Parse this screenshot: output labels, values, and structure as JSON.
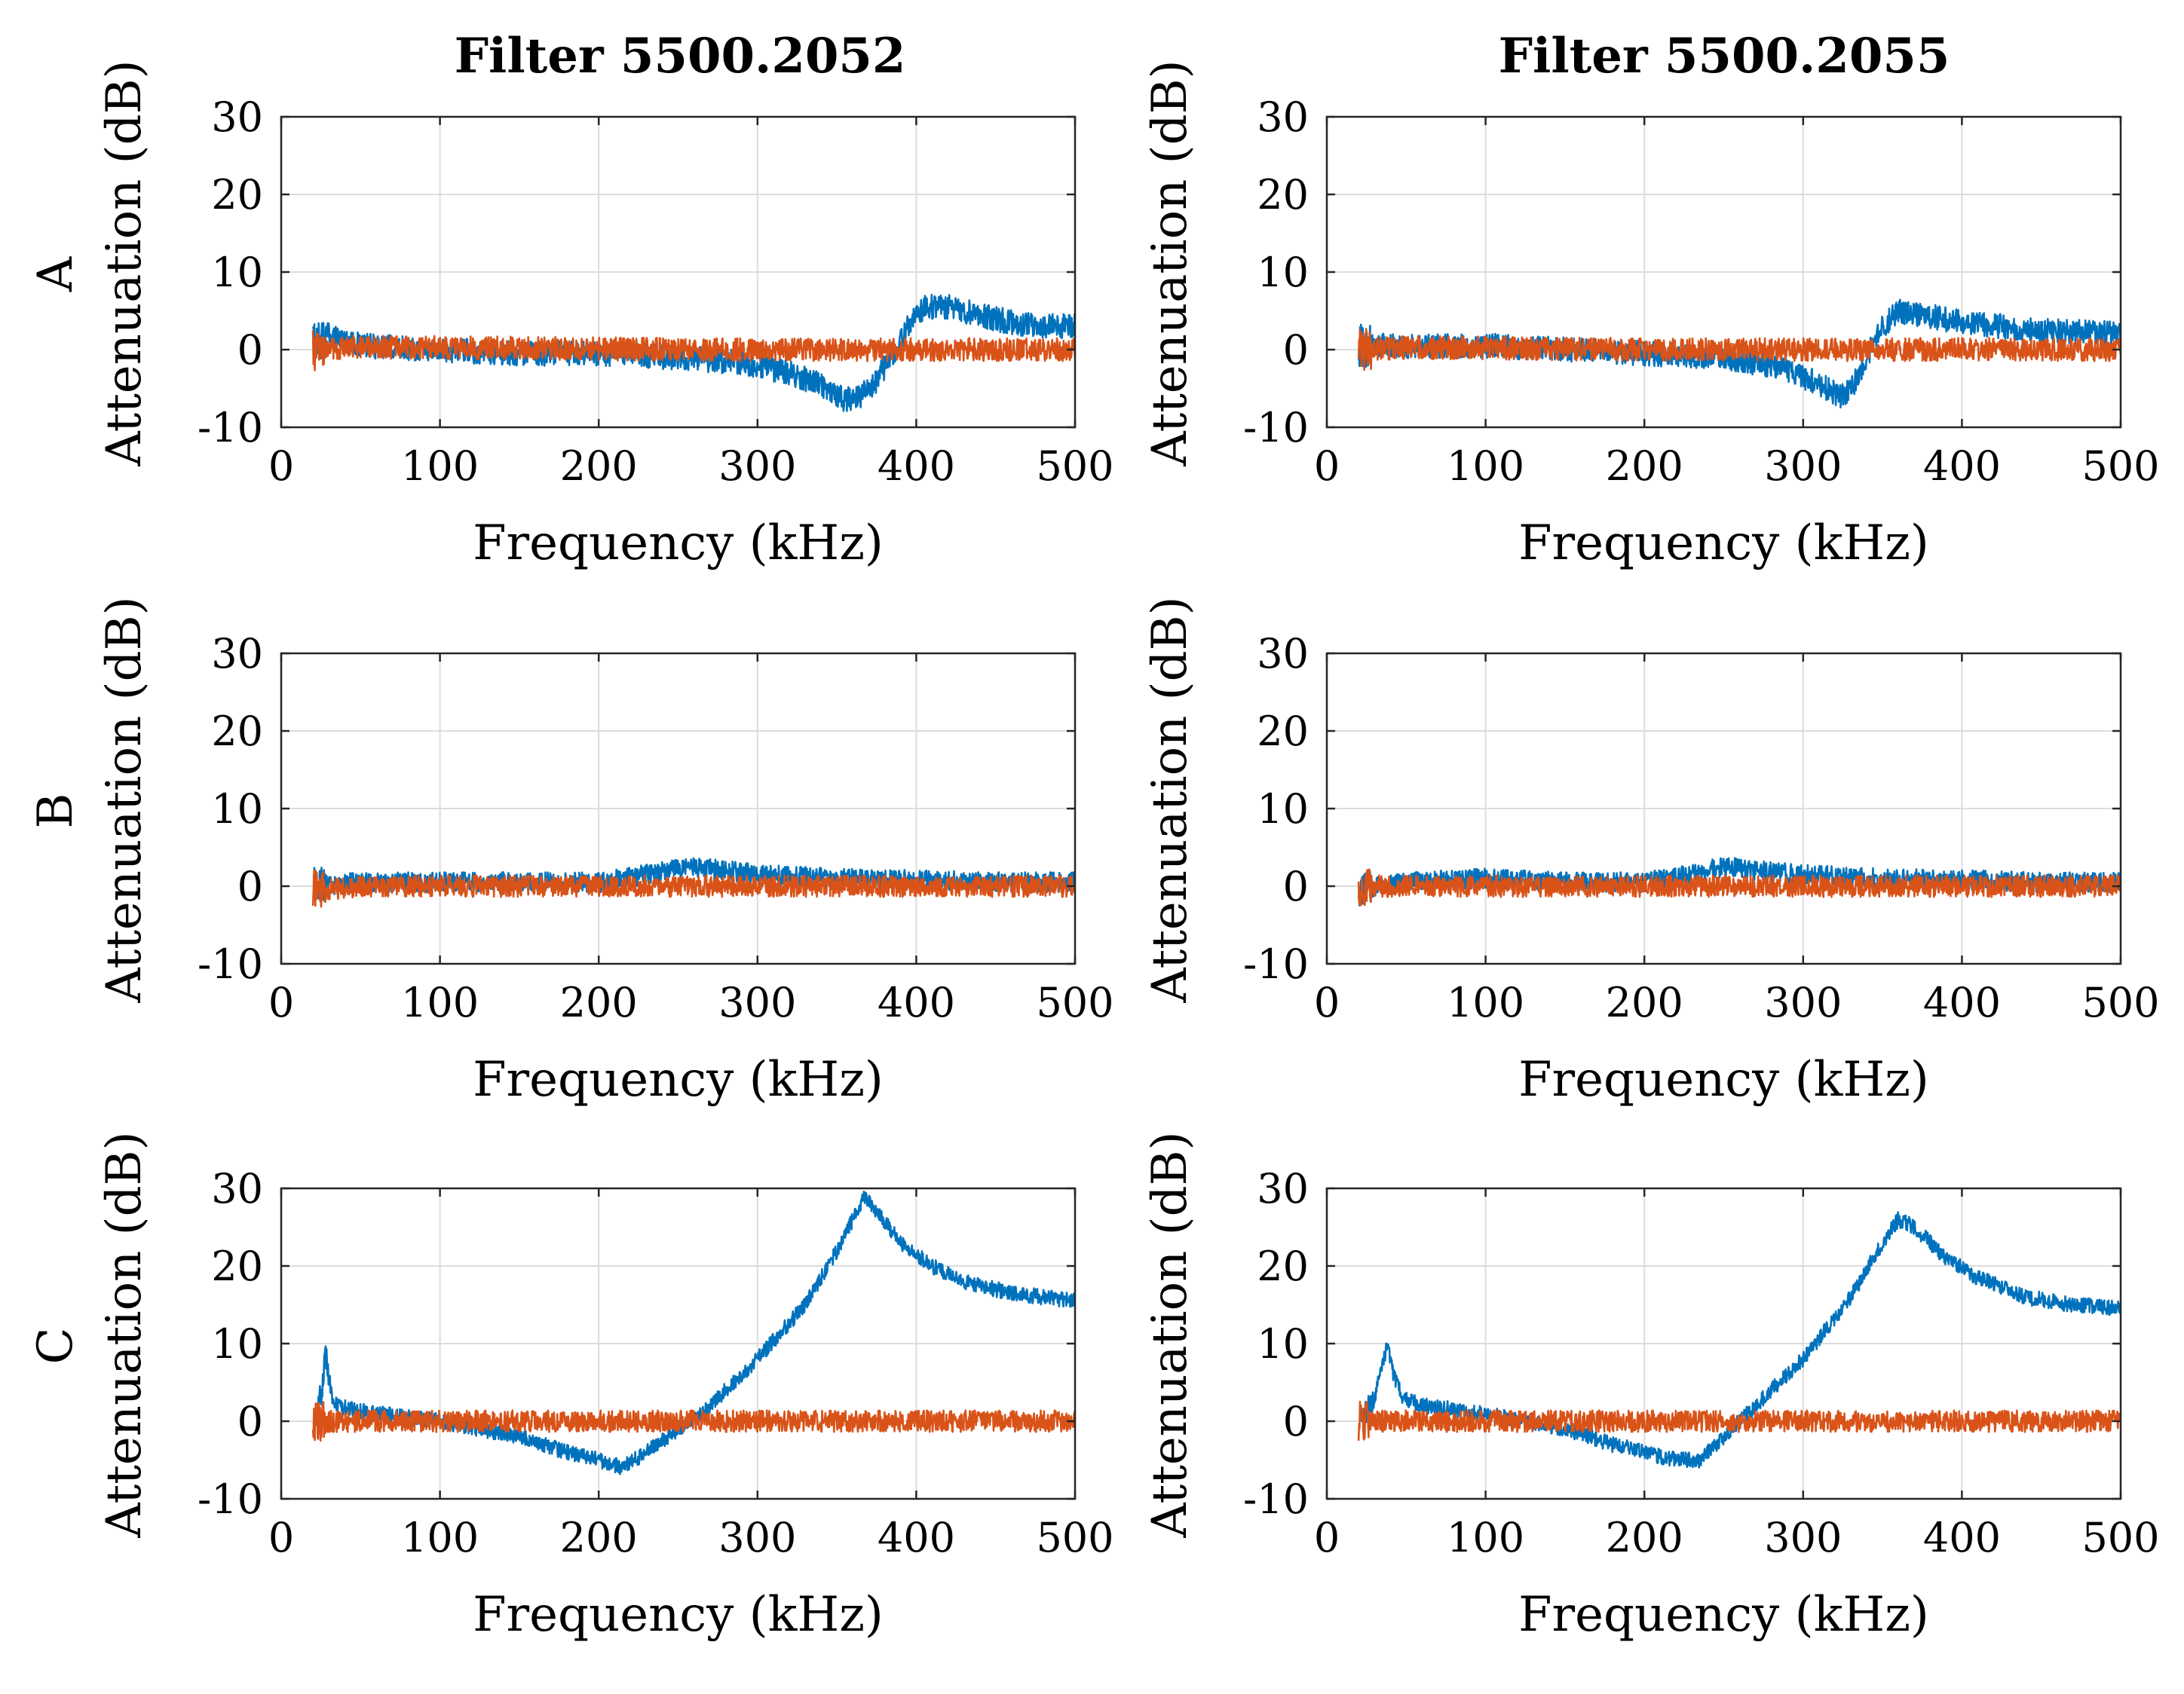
{
  "figure": {
    "column_titles": [
      "Filter 5500.2052",
      "Filter 5500.2055"
    ],
    "row_labels": [
      "A",
      "B",
      "C"
    ],
    "xlabel": "Frequency (kHz)",
    "ylabel": "Attenuation (dB)"
  },
  "colors": {
    "blue": "#0072BD",
    "orange": "#D95319",
    "grid": "#dcdcdc",
    "axis": "#262626"
  },
  "chart_data": [
    {
      "type": "line",
      "row_label": "A",
      "column_title": "Filter 5500.2052",
      "xlabel": "Frequency (kHz)",
      "ylabel": "Attenuation (dB)",
      "xlim": [
        0,
        500
      ],
      "ylim": [
        -10,
        30
      ],
      "xticks": [
        0,
        100,
        200,
        300,
        400,
        500
      ],
      "yticks": [
        -10,
        0,
        10,
        20,
        30
      ],
      "grid": true,
      "series": [
        {
          "color": "#0072BD",
          "noise": 1.6,
          "x": [
            20,
            30,
            50,
            100,
            150,
            200,
            250,
            280,
            300,
            320,
            340,
            355,
            365,
            375,
            385,
            395,
            405,
            420,
            440,
            460,
            480,
            500
          ],
          "y": [
            1,
            2,
            0.5,
            0,
            -0.5,
            -0.5,
            -1,
            -1.5,
            -2,
            -3,
            -4.5,
            -6.5,
            -6,
            -4,
            -0.5,
            3,
            5.5,
            5.5,
            4.5,
            3.5,
            3,
            3
          ]
        },
        {
          "color": "#D95319",
          "noise": 1.5,
          "x": [
            20,
            50,
            100,
            200,
            300,
            400,
            500
          ],
          "y": [
            0,
            0.3,
            0.3,
            0.1,
            0,
            0,
            0
          ]
        }
      ]
    },
    {
      "type": "line",
      "row_label": "A",
      "column_title": "Filter 5500.2055",
      "xlabel": "Frequency (kHz)",
      "ylabel": "Attenuation (dB)",
      "xlim": [
        0,
        500
      ],
      "ylim": [
        -10,
        30
      ],
      "xticks": [
        0,
        100,
        200,
        300,
        400,
        500
      ],
      "yticks": [
        -10,
        0,
        10,
        20,
        30
      ],
      "grid": true,
      "series": [
        {
          "color": "#0072BD",
          "noise": 1.6,
          "x": [
            20,
            50,
            100,
            150,
            200,
            250,
            280,
            300,
            315,
            325,
            332,
            340,
            350,
            360,
            375,
            400,
            450,
            500
          ],
          "y": [
            0.5,
            0.5,
            0.5,
            0,
            -0.5,
            -1,
            -2,
            -3.5,
            -5,
            -6,
            -4.5,
            -1,
            3,
            5,
            4.5,
            3.5,
            2.5,
            2
          ]
        },
        {
          "color": "#D95319",
          "noise": 1.5,
          "x": [
            20,
            50,
            100,
            200,
            300,
            400,
            500
          ],
          "y": [
            0,
            0.3,
            0.2,
            0,
            0,
            0,
            0
          ]
        }
      ]
    },
    {
      "type": "line",
      "row_label": "B",
      "column_title": "Filter 5500.2052",
      "xlabel": "Frequency (kHz)",
      "ylabel": "Attenuation (dB)",
      "xlim": [
        0,
        500
      ],
      "ylim": [
        -10,
        30
      ],
      "xticks": [
        0,
        100,
        200,
        300,
        400,
        500
      ],
      "yticks": [
        -10,
        0,
        10,
        20,
        30
      ],
      "grid": true,
      "series": [
        {
          "color": "#0072BD",
          "noise": 1.3,
          "x": [
            20,
            50,
            100,
            150,
            200,
            230,
            260,
            280,
            300,
            350,
            400,
            450,
            500
          ],
          "y": [
            0,
            0.5,
            0.5,
            0.5,
            0.5,
            1.5,
            2.5,
            2,
            1.5,
            1,
            0.8,
            0.5,
            0.5
          ]
        },
        {
          "color": "#D95319",
          "noise": 1.4,
          "x": [
            20,
            50,
            100,
            200,
            300,
            400,
            500
          ],
          "y": [
            -0.5,
            0,
            0,
            0,
            0,
            0,
            0
          ]
        }
      ]
    },
    {
      "type": "line",
      "row_label": "B",
      "column_title": "Filter 5500.2055",
      "xlabel": "Frequency (kHz)",
      "ylabel": "Attenuation (dB)",
      "xlim": [
        0,
        500
      ],
      "ylim": [
        -10,
        30
      ],
      "xticks": [
        0,
        100,
        200,
        300,
        400,
        500
      ],
      "yticks": [
        -10,
        0,
        10,
        20,
        30
      ],
      "grid": true,
      "series": [
        {
          "color": "#0072BD",
          "noise": 1.3,
          "x": [
            20,
            50,
            100,
            150,
            200,
            230,
            250,
            270,
            300,
            350,
            400,
            450,
            500
          ],
          "y": [
            -0.5,
            0.5,
            1,
            0.5,
            0.5,
            1.5,
            2.5,
            2,
            1.5,
            1,
            0.8,
            0.5,
            0.5
          ]
        },
        {
          "color": "#D95319",
          "noise": 1.4,
          "x": [
            20,
            50,
            100,
            200,
            300,
            400,
            500
          ],
          "y": [
            0,
            0,
            0,
            0,
            0,
            0,
            0
          ]
        }
      ]
    },
    {
      "type": "line",
      "row_label": "C",
      "column_title": "Filter 5500.2052",
      "xlabel": "Frequency (kHz)",
      "ylabel": "Attenuation (dB)",
      "xlim": [
        0,
        500
      ],
      "ylim": [
        -10,
        30
      ],
      "xticks": [
        0,
        100,
        200,
        300,
        400,
        500
      ],
      "yticks": [
        -10,
        0,
        10,
        20,
        30
      ],
      "grid": true,
      "series": [
        {
          "color": "#0072BD",
          "noise": 1.0,
          "x": [
            22,
            26,
            28,
            30,
            32,
            36,
            45,
            60,
            100,
            150,
            180,
            200,
            215,
            230,
            250,
            270,
            300,
            330,
            350,
            360,
            368,
            375,
            390,
            410,
            430,
            460,
            500
          ],
          "y": [
            1,
            4,
            9,
            6,
            3,
            2,
            1.5,
            1,
            0,
            -2,
            -4,
            -5,
            -6,
            -4,
            -1,
            2,
            8,
            15,
            22,
            26,
            29,
            27,
            23,
            20,
            18,
            16.5,
            15.5
          ]
        },
        {
          "color": "#D95319",
          "noise": 1.4,
          "x": [
            20,
            50,
            100,
            200,
            300,
            400,
            500
          ],
          "y": [
            0,
            0,
            0,
            0,
            0,
            0,
            0
          ]
        }
      ]
    },
    {
      "type": "line",
      "row_label": "C",
      "column_title": "Filter 5500.2055",
      "xlabel": "Frequency (kHz)",
      "ylabel": "Attenuation (dB)",
      "xlim": [
        0,
        500
      ],
      "ylim": [
        -10,
        30
      ],
      "xticks": [
        0,
        100,
        200,
        300,
        400,
        500
      ],
      "yticks": [
        -10,
        0,
        10,
        20,
        30
      ],
      "grid": true,
      "series": [
        {
          "color": "#0072BD",
          "noise": 1.0,
          "x": [
            22,
            30,
            35,
            38,
            42,
            48,
            60,
            100,
            150,
            180,
            200,
            220,
            235,
            250,
            270,
            300,
            330,
            350,
            360,
            370,
            390,
            410,
            440,
            470,
            500
          ],
          "y": [
            0.5,
            3,
            7,
            10,
            6,
            3,
            2,
            1,
            -1,
            -3,
            -4,
            -5,
            -5,
            -2,
            2,
            8,
            16,
            23,
            26,
            25,
            21,
            18.5,
            16,
            15,
            14.5
          ]
        },
        {
          "color": "#D95319",
          "noise": 1.4,
          "x": [
            20,
            50,
            100,
            200,
            300,
            400,
            500
          ],
          "y": [
            0,
            0,
            0,
            0,
            0,
            0,
            0
          ]
        }
      ]
    }
  ]
}
